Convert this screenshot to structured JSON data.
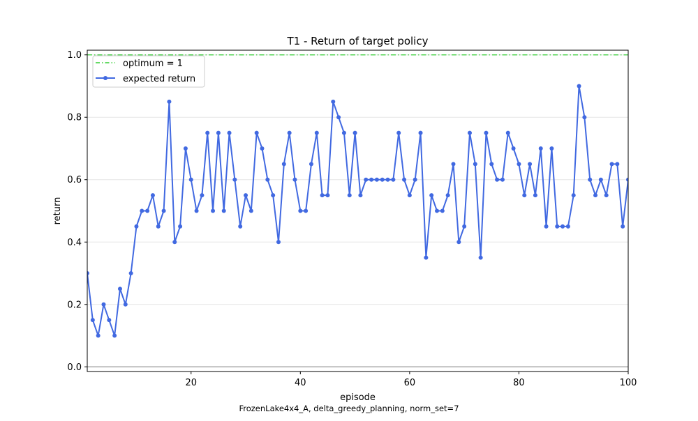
{
  "chart_data": {
    "type": "line",
    "title": "T1 - Return of target policy",
    "xlabel": "episode",
    "ylabel": "return",
    "caption": "FrozenLake4x4_A, delta_greedy_planning, norm_set=7",
    "xlim": [
      1,
      100
    ],
    "ylim": [
      -0.015,
      1.015
    ],
    "xticks": [
      20,
      40,
      60,
      80,
      100
    ],
    "yticks": [
      0.0,
      0.2,
      0.4,
      0.6,
      0.8,
      1.0
    ],
    "xtick_labels": [
      "20",
      "40",
      "60",
      "80",
      "100"
    ],
    "ytick_labels": [
      "0.0",
      "0.2",
      "0.4",
      "0.6",
      "0.8",
      "1.0"
    ],
    "grid": "horizontal",
    "legend_position": "upper-left",
    "zero_line": 0,
    "colors": {
      "expected_return": "#4169e1",
      "optimum": "#32cd32",
      "zero_line": "#808080",
      "grid": "#e6e6e6"
    },
    "reference_lines": [
      {
        "name": "optimum = 1",
        "y": 1,
        "style": "dash-dot",
        "color": "#32cd32"
      }
    ],
    "series": [
      {
        "name": "expected return",
        "color": "#4169e1",
        "marker": "circle",
        "x": [
          1,
          2,
          3,
          4,
          5,
          6,
          7,
          8,
          9,
          10,
          11,
          12,
          13,
          14,
          15,
          16,
          17,
          18,
          19,
          20,
          21,
          22,
          23,
          24,
          25,
          26,
          27,
          28,
          29,
          30,
          31,
          32,
          33,
          34,
          35,
          36,
          37,
          38,
          39,
          40,
          41,
          42,
          43,
          44,
          45,
          46,
          47,
          48,
          49,
          50,
          51,
          52,
          53,
          54,
          55,
          56,
          57,
          58,
          59,
          60,
          61,
          62,
          63,
          64,
          65,
          66,
          67,
          68,
          69,
          70,
          71,
          72,
          73,
          74,
          75,
          76,
          77,
          78,
          79,
          80,
          81,
          82,
          83,
          84,
          85,
          86,
          87,
          88,
          89,
          90,
          91,
          92,
          93,
          94,
          95,
          96,
          97,
          98,
          99,
          100
        ],
        "values": [
          0.3,
          0.15,
          0.1,
          0.2,
          0.15,
          0.1,
          0.25,
          0.2,
          0.3,
          0.45,
          0.5,
          0.5,
          0.55,
          0.45,
          0.5,
          0.85,
          0.4,
          0.45,
          0.7,
          0.6,
          0.5,
          0.55,
          0.75,
          0.5,
          0.75,
          0.5,
          0.75,
          0.6,
          0.45,
          0.55,
          0.5,
          0.75,
          0.7,
          0.6,
          0.55,
          0.4,
          0.65,
          0.75,
          0.6,
          0.5,
          0.5,
          0.65,
          0.75,
          0.55,
          0.55,
          0.85,
          0.8,
          0.75,
          0.55,
          0.75,
          0.55,
          0.6,
          0.6,
          0.6,
          0.6,
          0.6,
          0.6,
          0.75,
          0.6,
          0.55,
          0.6,
          0.75,
          0.35,
          0.55,
          0.5,
          0.5,
          0.55,
          0.65,
          0.4,
          0.45,
          0.75,
          0.65,
          0.35,
          0.75,
          0.65,
          0.6,
          0.6,
          0.75,
          0.7,
          0.65,
          0.55,
          0.65,
          0.55,
          0.7,
          0.45,
          0.7,
          0.45,
          0.45,
          0.45,
          0.55,
          0.9,
          0.8,
          0.6,
          0.55,
          0.6,
          0.55,
          0.65,
          0.65,
          0.45,
          0.6
        ]
      }
    ]
  }
}
